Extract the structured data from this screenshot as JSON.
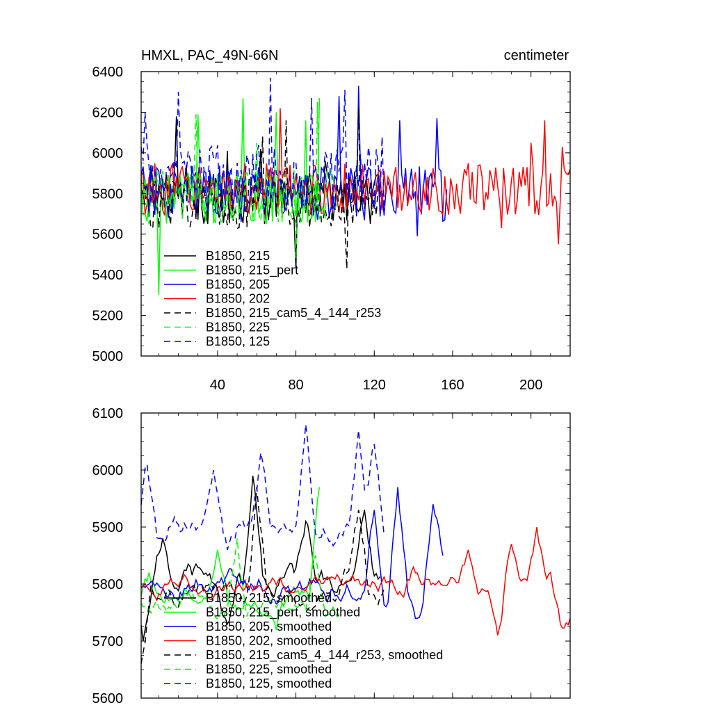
{
  "chart_data": [
    {
      "type": "line",
      "title": "HMXL, PAC_49N-66N",
      "units": "centimeter",
      "xlabel": "",
      "ylabel": "",
      "xlim": [
        1,
        220
      ],
      "ylim": [
        5000,
        6400
      ],
      "xticks": [
        40,
        80,
        120,
        160,
        200
      ],
      "yticks": [
        5000,
        5200,
        5400,
        5600,
        5800,
        6000,
        6200,
        6400
      ],
      "legend_position": "bottom-left",
      "series": [
        {
          "name": "B1850, 215",
          "color": "#000000",
          "dash": "solid",
          "length": 123,
          "mean": 5780,
          "amp": 130,
          "peaks": [
            [
              19,
              6180
            ],
            [
              6,
              5940
            ],
            [
              24,
              5940
            ],
            [
              45,
              6010
            ],
            [
              62,
              6020
            ],
            [
              80,
              5430
            ],
            [
              95,
              5960
            ]
          ]
        },
        {
          "name": "B1850, 215_pert",
          "color": "#00ff00",
          "dash": "solid",
          "length": 92,
          "mean": 5780,
          "amp": 130,
          "peaks": [
            [
              10,
              5300
            ],
            [
              30,
              6190
            ],
            [
              53,
              6270
            ],
            [
              70,
              6200
            ],
            [
              85,
              6160
            ],
            [
              92,
              6270
            ]
          ]
        },
        {
          "name": "B1850, 205",
          "color": "#0000ff",
          "dash": "solid",
          "length": 157,
          "mean": 5800,
          "amp": 140,
          "peaks": [
            [
              102,
              6280
            ],
            [
              112,
              6330
            ],
            [
              133,
              6160
            ],
            [
              152,
              6170
            ],
            [
              142,
              5590
            ]
          ]
        },
        {
          "name": "B1850, 202",
          "color": "#ff0000",
          "dash": "solid",
          "length": 220,
          "mean": 5820,
          "amp": 130,
          "peaks": [
            [
              200,
              6050
            ],
            [
              207,
              6160
            ],
            [
              216,
              6030
            ],
            [
              185,
              5630
            ],
            [
              214,
              5550
            ],
            [
              72,
              6220
            ]
          ]
        },
        {
          "name": "B1850, 215_cam5_4_144_r253",
          "color": "#000000",
          "dash": "dashed",
          "length": 125,
          "mean": 5760,
          "amp": 140,
          "peaks": [
            [
              63,
              6080
            ],
            [
              106,
              5430
            ],
            [
              112,
              6220
            ],
            [
              75,
              6160
            ]
          ]
        },
        {
          "name": "B1850, 225",
          "color": "#00ff00",
          "dash": "dashed",
          "length": 102,
          "mean": 5780,
          "amp": 140,
          "peaks": [
            [
              29,
              6190
            ],
            [
              60,
              6050
            ],
            [
              91,
              6250
            ],
            [
              80,
              5480
            ]
          ]
        },
        {
          "name": "B1850, 125",
          "color": "#0000ff",
          "dash": "dashed",
          "length": 125,
          "mean": 5880,
          "amp": 160,
          "peaks": [
            [
              3,
              6200
            ],
            [
              20,
              6300
            ],
            [
              67,
              6370
            ],
            [
              88,
              6270
            ],
            [
              105,
              6310
            ],
            [
              124,
              6080
            ],
            [
              2,
              5960
            ]
          ]
        }
      ]
    },
    {
      "type": "line",
      "title": "",
      "xlabel": "",
      "ylabel": "",
      "xlim": [
        1,
        220
      ],
      "ylim": [
        5600,
        6100
      ],
      "yticks": [
        5600,
        5700,
        5800,
        5900,
        6000,
        6100
      ],
      "legend_position": "bottom-left",
      "series": [
        {
          "name": "B1850, 215, smoothed",
          "color": "#000000",
          "dash": "solid",
          "length": 123,
          "mean": 5810,
          "amp": 50,
          "peaks": [
            [
              12,
              5880
            ],
            [
              58,
              5990
            ],
            [
              85,
              5910
            ],
            [
              115,
              5930
            ],
            [
              2,
              5700
            ],
            [
              45,
              5730
            ]
          ]
        },
        {
          "name": "B1850, 215_pert, smoothed",
          "color": "#00ff00",
          "dash": "solid",
          "length": 92,
          "mean": 5780,
          "amp": 40,
          "peaks": [
            [
              5,
              5820
            ],
            [
              92,
              5970
            ],
            [
              70,
              5720
            ],
            [
              40,
              5860
            ]
          ]
        },
        {
          "name": "B1850, 205, smoothed",
          "color": "#0000ff",
          "dash": "solid",
          "length": 155,
          "mean": 5800,
          "amp": 45,
          "peaks": [
            [
              132,
              5970
            ],
            [
              150,
              5940
            ],
            [
              142,
              5740
            ],
            [
              120,
              5930
            ],
            [
              155,
              5850
            ]
          ]
        },
        {
          "name": "B1850, 202, smoothed",
          "color": "#ff0000",
          "dash": "solid",
          "length": 220,
          "mean": 5800,
          "amp": 35,
          "peaks": [
            [
              190,
              5870
            ],
            [
              203,
              5900
            ],
            [
              183,
              5710
            ],
            [
              215,
              5730
            ],
            [
              140,
              5830
            ],
            [
              168,
              5860
            ],
            [
              220,
              5740
            ]
          ]
        },
        {
          "name": "B1850, 215_cam5_4_144_r253, smoothed",
          "color": "#000000",
          "dash": "dashed",
          "length": 125,
          "mean": 5790,
          "amp": 45,
          "peaks": [
            [
              1,
              5660
            ],
            [
              60,
              5970
            ],
            [
              112,
              5930
            ],
            [
              120,
              5780
            ],
            [
              100,
              5770
            ]
          ]
        },
        {
          "name": "B1850, 225, smoothed",
          "color": "#00ff00",
          "dash": "dashed",
          "length": 102,
          "mean": 5760,
          "amp": 40,
          "peaks": [
            [
              2,
              5760
            ],
            [
              30,
              5780
            ],
            [
              90,
              5850
            ],
            [
              50,
              5880
            ]
          ]
        },
        {
          "name": "B1850, 125, smoothed",
          "color": "#0000ff",
          "dash": "dashed",
          "length": 125,
          "mean": 5900,
          "amp": 45,
          "peaks": [
            [
              4,
              6010
            ],
            [
              10,
              5880
            ],
            [
              38,
              6000
            ],
            [
              62,
              6030
            ],
            [
              85,
              6080
            ],
            [
              112,
              6070
            ],
            [
              120,
              6050
            ],
            [
              124,
              5920
            ],
            [
              45,
              5860
            ]
          ]
        }
      ]
    }
  ]
}
